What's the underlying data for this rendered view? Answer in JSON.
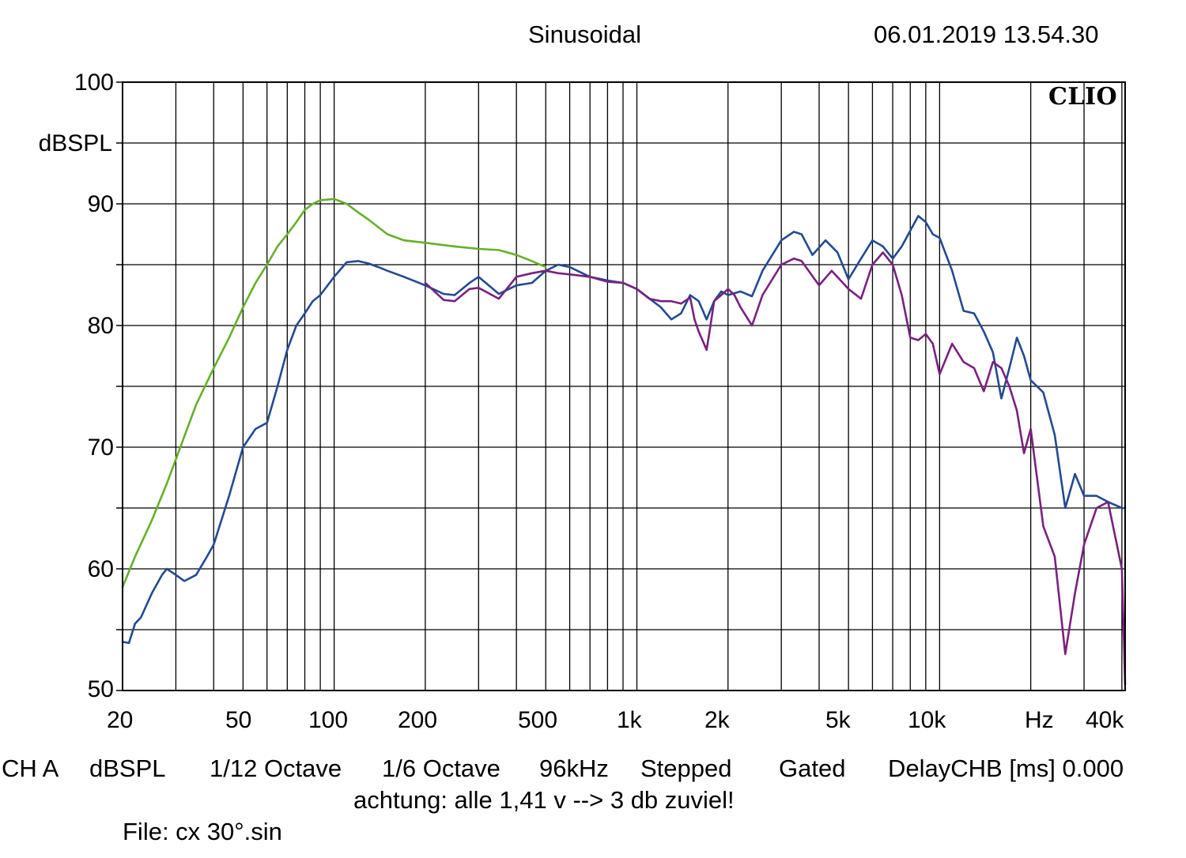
{
  "header": {
    "title": "Sinusoidal",
    "timestamp": "06.01.2019 13.54.30",
    "brand": "CLIO"
  },
  "axes": {
    "y_unit": "dBSPL",
    "y_ticks": [
      "100",
      "90",
      "80",
      "70",
      "60",
      "50"
    ],
    "x_ticks": [
      "20",
      "50",
      "100",
      "200",
      "500",
      "1k",
      "2k",
      "5k",
      "10k",
      "Hz",
      "40k"
    ]
  },
  "footer": {
    "items": [
      "CH A",
      "dBSPL",
      "1/12 Octave",
      "1/6 Octave",
      "96kHz",
      "Stepped",
      "Gated",
      "DelayCHB [ms] 0.000"
    ],
    "note": "achtung: alle 1,41 v --> 3 db zuviel!",
    "file": "File: cx 30°.sin"
  },
  "colors": {
    "green": "#66b02a",
    "blue": "#234a93",
    "purple": "#7a2080",
    "grid": "#000000"
  },
  "chart_data": {
    "type": "line",
    "x_scale": "log",
    "xlim": [
      20,
      41000
    ],
    "ylim": [
      50,
      100
    ],
    "ylabel": "dBSPL",
    "xlabel": "Hz",
    "grid": true,
    "series": [
      {
        "color": "green",
        "x": [
          20,
          22,
          25,
          28,
          30,
          35,
          40,
          45,
          50,
          55,
          60,
          65,
          70,
          75,
          80,
          85,
          90,
          100,
          110,
          120,
          130,
          150,
          170,
          200,
          250,
          300,
          350,
          400,
          450,
          500
        ],
        "y": [
          58.5,
          61,
          64,
          67,
          69,
          73.5,
          76.5,
          79,
          81.5,
          83.5,
          85,
          86.5,
          87.5,
          88.5,
          89.5,
          90,
          90.3,
          90.4,
          90,
          89.3,
          88.7,
          87.5,
          87,
          86.8,
          86.5,
          86.3,
          86.2,
          85.8,
          85.3,
          84.8
        ]
      },
      {
        "color": "blue",
        "x": [
          20,
          21,
          22,
          23,
          25,
          27,
          28,
          30,
          32,
          35,
          38,
          40,
          45,
          50,
          55,
          60,
          65,
          70,
          75,
          80,
          85,
          90,
          100,
          110,
          120,
          130,
          140,
          150,
          170,
          200,
          230,
          250,
          280,
          300,
          350,
          400,
          450,
          500,
          550,
          600,
          700,
          800,
          900,
          1000,
          1200,
          1300,
          1400,
          1500,
          1600,
          1700,
          1800,
          1900,
          2000,
          2200,
          2400,
          2600,
          3000,
          3300,
          3500,
          3800,
          4200,
          4600,
          5000,
          5500,
          6000,
          6500,
          7000,
          7500,
          8000,
          8500,
          9000,
          9500,
          10000,
          11000,
          12000,
          13000,
          14000,
          15000,
          16000,
          17000,
          18000,
          19000,
          20000,
          22000,
          24000,
          26000,
          28000,
          30000,
          33000,
          36000,
          40000,
          41000
        ],
        "y": [
          54,
          53.9,
          55.5,
          56,
          58,
          59.5,
          60,
          59.5,
          59,
          59.5,
          61,
          62,
          66,
          70,
          71.5,
          72,
          75,
          78,
          80,
          81,
          82,
          82.5,
          84,
          85.2,
          85.3,
          85.1,
          84.8,
          84.5,
          84,
          83.3,
          82.6,
          82.5,
          83.5,
          84,
          82.6,
          83.3,
          83.5,
          84.5,
          85,
          84.8,
          84,
          83.7,
          83.5,
          83,
          81.5,
          80.5,
          81,
          82.5,
          82,
          80.5,
          82,
          82.8,
          82.5,
          82.8,
          82.4,
          84.5,
          87,
          87.7,
          87.5,
          85.8,
          87,
          86,
          83.8,
          85.5,
          87,
          86.5,
          85.5,
          86.5,
          87.8,
          89,
          88.5,
          87.5,
          87.2,
          84.5,
          81.2,
          81,
          79.5,
          77.8,
          74,
          76.5,
          79,
          77.5,
          75.5,
          74.5,
          71,
          65,
          67.8,
          66,
          66,
          65.5,
          65,
          65
        ]
      },
      {
        "color": "purple",
        "x": [
          200,
          230,
          250,
          280,
          300,
          350,
          400,
          450,
          500,
          550,
          600,
          700,
          800,
          900,
          1000,
          1100,
          1200,
          1300,
          1400,
          1500,
          1550,
          1600,
          1700,
          1750,
          1800,
          1900,
          2000,
          2100,
          2200,
          2400,
          2600,
          3000,
          3300,
          3500,
          4000,
          4400,
          5000,
          5500,
          6000,
          6500,
          7000,
          7500,
          8000,
          8500,
          9000,
          9500,
          10000,
          11000,
          12000,
          13000,
          14000,
          15000,
          16000,
          17000,
          18000,
          19000,
          20000,
          22000,
          24000,
          26000,
          28000,
          30000,
          33000,
          36000,
          40000,
          41000
        ],
        "y": [
          83.5,
          82.1,
          82,
          83,
          83.1,
          82.2,
          84,
          84.3,
          84.5,
          84.3,
          84.2,
          84,
          83.6,
          83.5,
          83,
          82.2,
          82,
          82,
          81.8,
          82.3,
          80.5,
          79.5,
          78,
          80,
          82,
          82.5,
          83,
          82.5,
          81.5,
          80,
          82.5,
          85,
          85.5,
          85.3,
          83.3,
          84.5,
          83,
          82.2,
          85,
          86,
          85,
          82.5,
          79,
          78.8,
          79.3,
          78.5,
          76,
          78.5,
          77,
          76.5,
          74.6,
          77,
          76.5,
          75,
          73,
          69.5,
          71.5,
          63.5,
          61,
          53,
          58,
          62,
          65,
          65.5,
          60,
          50.5
        ]
      }
    ]
  }
}
